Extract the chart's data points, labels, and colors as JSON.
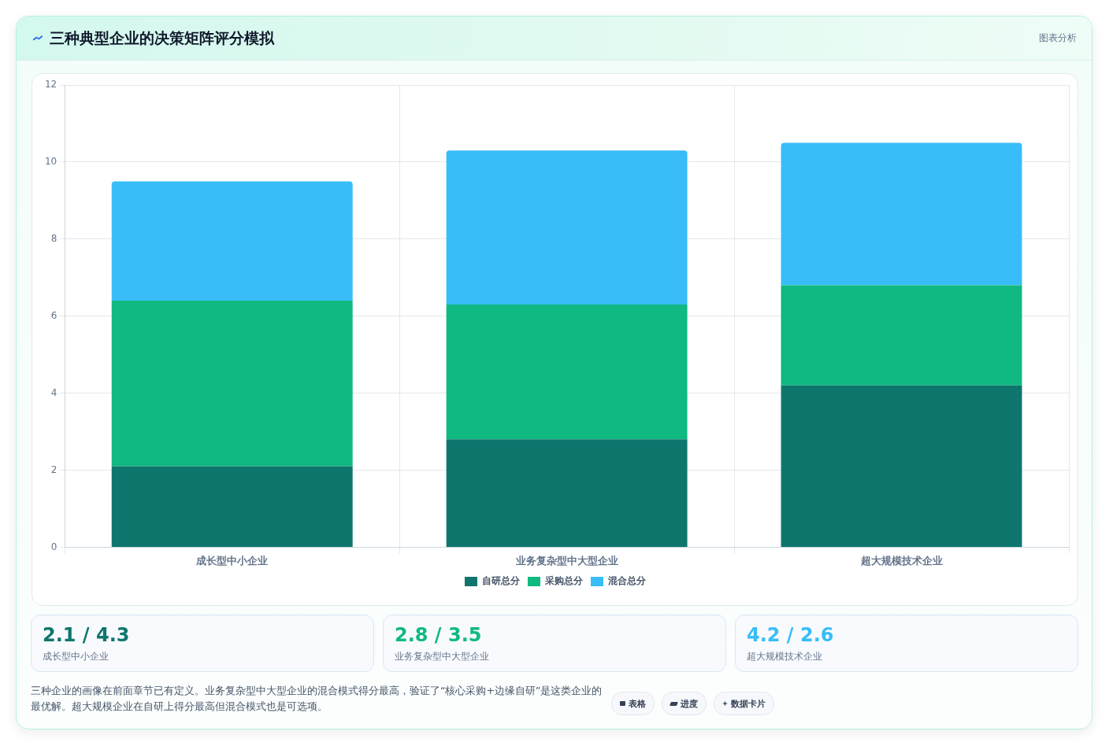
{
  "chart_data": [
    {
      "type": "bar",
      "title": "三种典型企业的决策矩阵评分模拟",
      "categories": [
        "成长型中小企业",
        "业务复杂型中大型企业",
        "超大规模技术企业"
      ],
      "series": [
        {
          "name": "自研总分",
          "color": "#0f766e",
          "values": [
            2.1,
            2.8,
            4.2
          ]
        },
        {
          "name": "采购总分",
          "color": "#10b981",
          "values": [
            4.3,
            3.5,
            2.6
          ]
        },
        {
          "name": "混合总分",
          "color": "#38bdf8",
          "values": [
            3.1,
            4.0,
            3.7
          ]
        }
      ],
      "stacked": true,
      "ylim": [
        0,
        12
      ],
      "yticks": [
        0,
        2,
        4,
        6,
        8,
        10,
        12
      ],
      "grid": true,
      "legend": "bottom",
      "annotations": [
        "图表分析"
      ]
    },
    {
      "type": "other",
      "categories": [
        "成长型中小企业",
        "业务复杂型中大型企业",
        "超大规模技术企业"
      ],
      "value_labels": [
        "2.1 / 4.3",
        "2.8 / 3.5",
        "4.2 / 2.6"
      ],
      "annotations": [
        "三种企业的画像在前面章节已有定义。业务复杂型中大型企业的混合模式得分最高，验证了“核心采购+边缘自研”是这类企业的最优解。超大规模企业在自研上得分最高但混合模式也是可选项。",
        "表格",
        "进度",
        "数据卡片"
      ]
    }
  ]
}
